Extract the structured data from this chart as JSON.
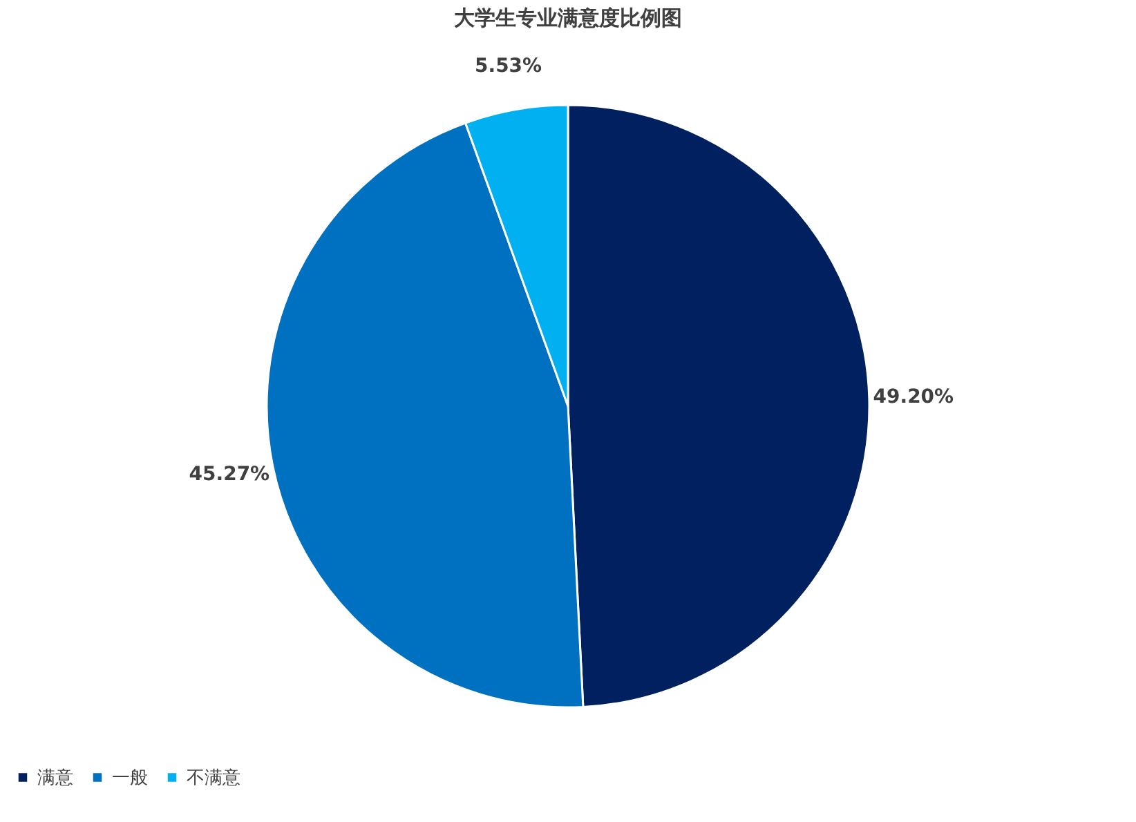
{
  "chart_data": {
    "type": "pie",
    "title": "大学生专业满意度比例图",
    "categories": [
      "满意",
      "一般",
      "不满意"
    ],
    "values": [
      49.2,
      45.27,
      5.53
    ],
    "value_labels": [
      "49.20%",
      "45.27%",
      "5.53%"
    ],
    "colors": [
      "#002060",
      "#0070c0",
      "#00b0f0"
    ],
    "legend": "bottom"
  }
}
